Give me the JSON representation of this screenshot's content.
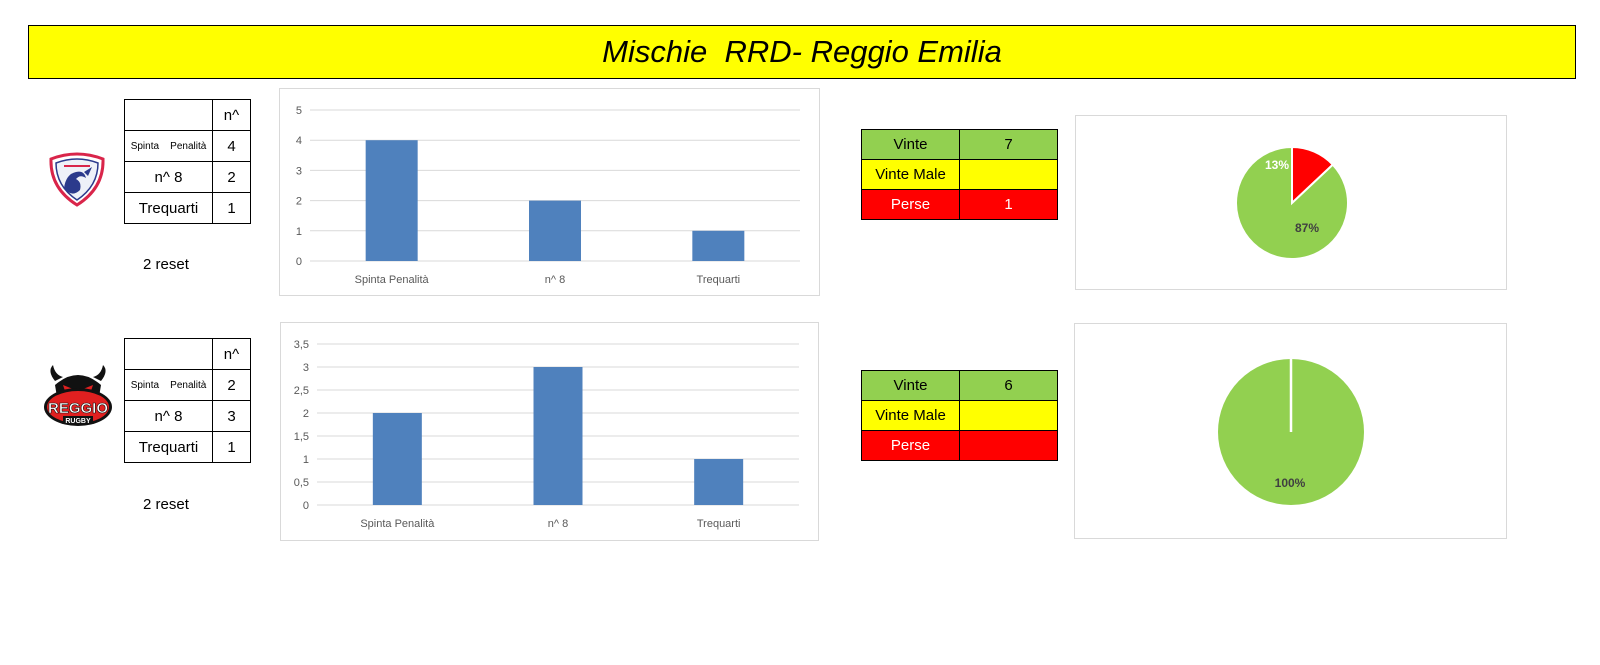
{
  "title": "Mischie  RRD- Reggio Emilia",
  "colors": {
    "banner": "#ffff00",
    "bar": "#4f81bd",
    "win": "#92d050",
    "bad": "#ffff00",
    "lost": "#ff0000",
    "grid": "#d9d9d9"
  },
  "teams": [
    {
      "logo": "rovigo-logo",
      "table": {
        "header": "n^",
        "rows": [
          {
            "label": "Spinta    Penalità",
            "value": "4"
          },
          {
            "label": "n^ 8",
            "value": "2"
          },
          {
            "label": "Trequarti",
            "value": "1"
          }
        ]
      },
      "reset": "2 reset",
      "results": [
        {
          "label": "Vinte",
          "value": "7"
        },
        {
          "label": "Vinte Male",
          "value": ""
        },
        {
          "label": "Perse",
          "value": "1"
        }
      ]
    },
    {
      "logo": "reggio-rugby-logo",
      "logo_text": "REGGIO",
      "logo_subtext": "RUGBY",
      "table": {
        "header": "n^",
        "rows": [
          {
            "label": "Spinta    Penalità",
            "value": "2"
          },
          {
            "label": "n^ 8",
            "value": "3"
          },
          {
            "label": "Trequarti",
            "value": "1"
          }
        ]
      },
      "reset": "2 reset",
      "results": [
        {
          "label": "Vinte",
          "value": "6"
        },
        {
          "label": "Vinte Male",
          "value": ""
        },
        {
          "label": "Perse",
          "value": ""
        }
      ]
    }
  ],
  "chart_data": [
    {
      "type": "bar",
      "categories": [
        "Spinta    Penalità",
        "n^ 8",
        "Trequarti"
      ],
      "values": [
        4,
        2,
        1
      ],
      "ylim": [
        0,
        5
      ],
      "yticks": [
        "0",
        "1",
        "2",
        "3",
        "4",
        "5"
      ],
      "grid": true,
      "legend": "none"
    },
    {
      "type": "pie",
      "slices": [
        {
          "value": 87,
          "label": "87%",
          "color": "#92d050"
        },
        {
          "value": 13,
          "label": "13%",
          "color": "#ff0000"
        }
      ]
    },
    {
      "type": "bar",
      "categories": [
        "Spinta    Penalità",
        "n^ 8",
        "Trequarti"
      ],
      "values": [
        2,
        3,
        1
      ],
      "ylim": [
        0,
        3.5
      ],
      "yticks": [
        "0",
        "0,5",
        "1",
        "1,5",
        "2",
        "2,5",
        "3",
        "3,5"
      ],
      "grid": true,
      "legend": "none"
    },
    {
      "type": "pie",
      "slices": [
        {
          "value": 100,
          "label": "100%",
          "color": "#92d050"
        }
      ]
    }
  ]
}
